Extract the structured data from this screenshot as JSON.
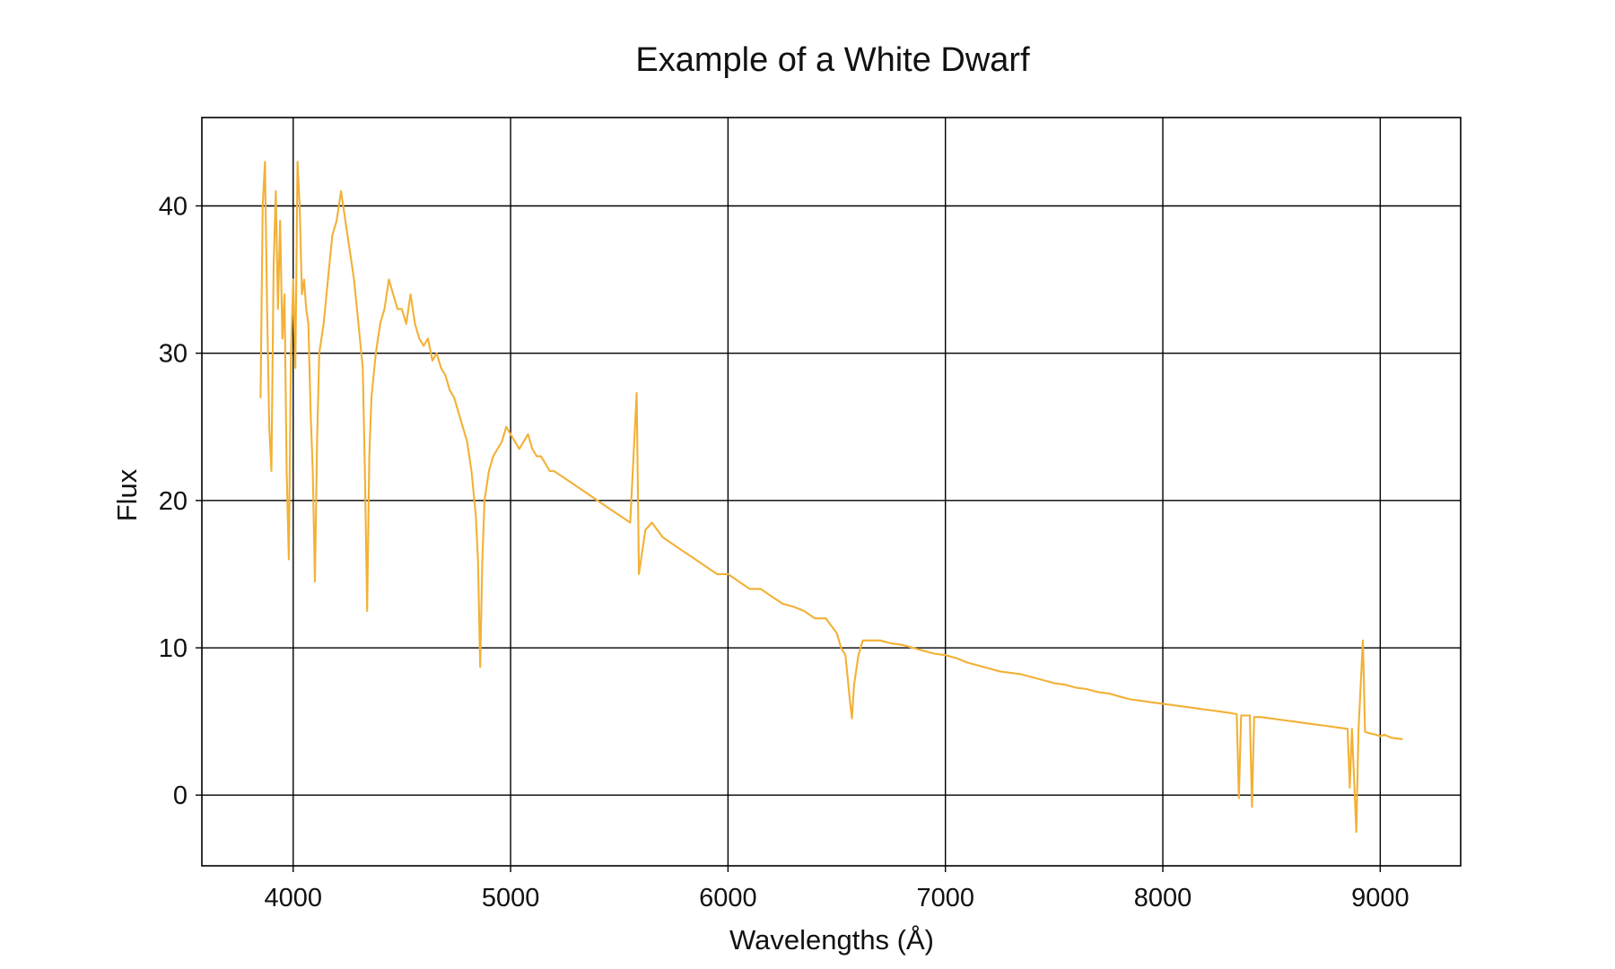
{
  "chart_data": {
    "type": "line",
    "title": "Example of a White Dwarf",
    "xlabel": "Wavelengths (Å)",
    "ylabel": "Flux",
    "xlim": [
      3580,
      9370
    ],
    "ylim": [
      -4.8,
      46
    ],
    "xticks": [
      4000,
      5000,
      6000,
      7000,
      8000,
      9000
    ],
    "yticks": [
      0,
      10,
      20,
      30,
      40
    ],
    "grid": true,
    "line_color": "#f2b136",
    "series": [
      {
        "points": [
          [
            3850,
            27
          ],
          [
            3860,
            40
          ],
          [
            3870,
            43
          ],
          [
            3880,
            33
          ],
          [
            3890,
            25
          ],
          [
            3900,
            22
          ],
          [
            3910,
            36
          ],
          [
            3920,
            41
          ],
          [
            3930,
            33
          ],
          [
            3940,
            39
          ],
          [
            3950,
            31
          ],
          [
            3960,
            34
          ],
          [
            3970,
            22
          ],
          [
            3980,
            16
          ],
          [
            3990,
            30
          ],
          [
            4000,
            35
          ],
          [
            4010,
            29
          ],
          [
            4020,
            43
          ],
          [
            4030,
            40
          ],
          [
            4040,
            34
          ],
          [
            4050,
            35
          ],
          [
            4060,
            33
          ],
          [
            4070,
            32
          ],
          [
            4080,
            26
          ],
          [
            4090,
            22
          ],
          [
            4100,
            14.5
          ],
          [
            4110,
            24
          ],
          [
            4120,
            30
          ],
          [
            4140,
            32
          ],
          [
            4160,
            35
          ],
          [
            4180,
            38
          ],
          [
            4200,
            39
          ],
          [
            4220,
            41
          ],
          [
            4240,
            39
          ],
          [
            4260,
            37
          ],
          [
            4280,
            35
          ],
          [
            4300,
            32
          ],
          [
            4320,
            29
          ],
          [
            4330,
            22
          ],
          [
            4340,
            12.5
          ],
          [
            4350,
            23
          ],
          [
            4360,
            27
          ],
          [
            4380,
            30
          ],
          [
            4400,
            32
          ],
          [
            4420,
            33
          ],
          [
            4440,
            35
          ],
          [
            4460,
            34
          ],
          [
            4480,
            33
          ],
          [
            4500,
            33
          ],
          [
            4520,
            32
          ],
          [
            4540,
            34
          ],
          [
            4560,
            32
          ],
          [
            4580,
            31
          ],
          [
            4600,
            30.5
          ],
          [
            4620,
            31
          ],
          [
            4640,
            29.5
          ],
          [
            4660,
            30
          ],
          [
            4680,
            29
          ],
          [
            4700,
            28.5
          ],
          [
            4720,
            27.5
          ],
          [
            4740,
            27
          ],
          [
            4760,
            26
          ],
          [
            4780,
            25
          ],
          [
            4800,
            24
          ],
          [
            4820,
            22
          ],
          [
            4840,
            19
          ],
          [
            4850,
            16
          ],
          [
            4860,
            8.7
          ],
          [
            4870,
            16
          ],
          [
            4880,
            20
          ],
          [
            4900,
            22
          ],
          [
            4920,
            23
          ],
          [
            4940,
            23.5
          ],
          [
            4960,
            24
          ],
          [
            4980,
            25
          ],
          [
            5000,
            24.5
          ],
          [
            5020,
            24
          ],
          [
            5040,
            23.5
          ],
          [
            5060,
            24
          ],
          [
            5080,
            24.5
          ],
          [
            5100,
            23.5
          ],
          [
            5120,
            23
          ],
          [
            5140,
            23
          ],
          [
            5160,
            22.5
          ],
          [
            5180,
            22
          ],
          [
            5200,
            22
          ],
          [
            5250,
            21.5
          ],
          [
            5300,
            21
          ],
          [
            5350,
            20.5
          ],
          [
            5400,
            20
          ],
          [
            5450,
            19.5
          ],
          [
            5500,
            19
          ],
          [
            5550,
            18.5
          ],
          [
            5580,
            27.3
          ],
          [
            5590,
            15
          ],
          [
            5620,
            18
          ],
          [
            5650,
            18.5
          ],
          [
            5700,
            17.5
          ],
          [
            5750,
            17
          ],
          [
            5800,
            16.5
          ],
          [
            5850,
            16
          ],
          [
            5900,
            15.5
          ],
          [
            5950,
            15
          ],
          [
            6000,
            15
          ],
          [
            6050,
            14.5
          ],
          [
            6100,
            14
          ],
          [
            6150,
            14
          ],
          [
            6200,
            13.5
          ],
          [
            6250,
            13
          ],
          [
            6300,
            12.8
          ],
          [
            6350,
            12.5
          ],
          [
            6400,
            12
          ],
          [
            6450,
            12
          ],
          [
            6500,
            11
          ],
          [
            6520,
            10
          ],
          [
            6540,
            9.5
          ],
          [
            6560,
            6.5
          ],
          [
            6570,
            5.2
          ],
          [
            6580,
            7.5
          ],
          [
            6600,
            9.5
          ],
          [
            6620,
            10.5
          ],
          [
            6650,
            10.5
          ],
          [
            6700,
            10.5
          ],
          [
            6750,
            10.3
          ],
          [
            6800,
            10.2
          ],
          [
            6850,
            10
          ],
          [
            6900,
            9.8
          ],
          [
            6950,
            9.6
          ],
          [
            7000,
            9.5
          ],
          [
            7050,
            9.3
          ],
          [
            7100,
            9
          ],
          [
            7150,
            8.8
          ],
          [
            7200,
            8.6
          ],
          [
            7250,
            8.4
          ],
          [
            7300,
            8.3
          ],
          [
            7350,
            8.2
          ],
          [
            7400,
            8
          ],
          [
            7450,
            7.8
          ],
          [
            7500,
            7.6
          ],
          [
            7550,
            7.5
          ],
          [
            7600,
            7.3
          ],
          [
            7650,
            7.2
          ],
          [
            7700,
            7
          ],
          [
            7750,
            6.9
          ],
          [
            7800,
            6.7
          ],
          [
            7850,
            6.5
          ],
          [
            7900,
            6.4
          ],
          [
            7950,
            6.3
          ],
          [
            8000,
            6.2
          ],
          [
            8050,
            6.1
          ],
          [
            8100,
            6
          ],
          [
            8150,
            5.9
          ],
          [
            8200,
            5.8
          ],
          [
            8250,
            5.7
          ],
          [
            8300,
            5.6
          ],
          [
            8340,
            5.5
          ],
          [
            8350,
            -0.2
          ],
          [
            8360,
            5.4
          ],
          [
            8400,
            5.4
          ],
          [
            8410,
            -0.8
          ],
          [
            8420,
            5.3
          ],
          [
            8450,
            5.3
          ],
          [
            8500,
            5.2
          ],
          [
            8550,
            5.1
          ],
          [
            8600,
            5
          ],
          [
            8650,
            4.9
          ],
          [
            8700,
            4.8
          ],
          [
            8750,
            4.7
          ],
          [
            8800,
            4.6
          ],
          [
            8850,
            4.5
          ],
          [
            8860,
            0.5
          ],
          [
            8870,
            4.5
          ],
          [
            8890,
            -2.5
          ],
          [
            8900,
            4.4
          ],
          [
            8920,
            10.5
          ],
          [
            8930,
            4.3
          ],
          [
            8950,
            4.2
          ],
          [
            8980,
            4.1
          ],
          [
            9000,
            4
          ],
          [
            9020,
            4.1
          ],
          [
            9050,
            3.9
          ],
          [
            9100,
            3.8
          ]
        ]
      }
    ]
  }
}
